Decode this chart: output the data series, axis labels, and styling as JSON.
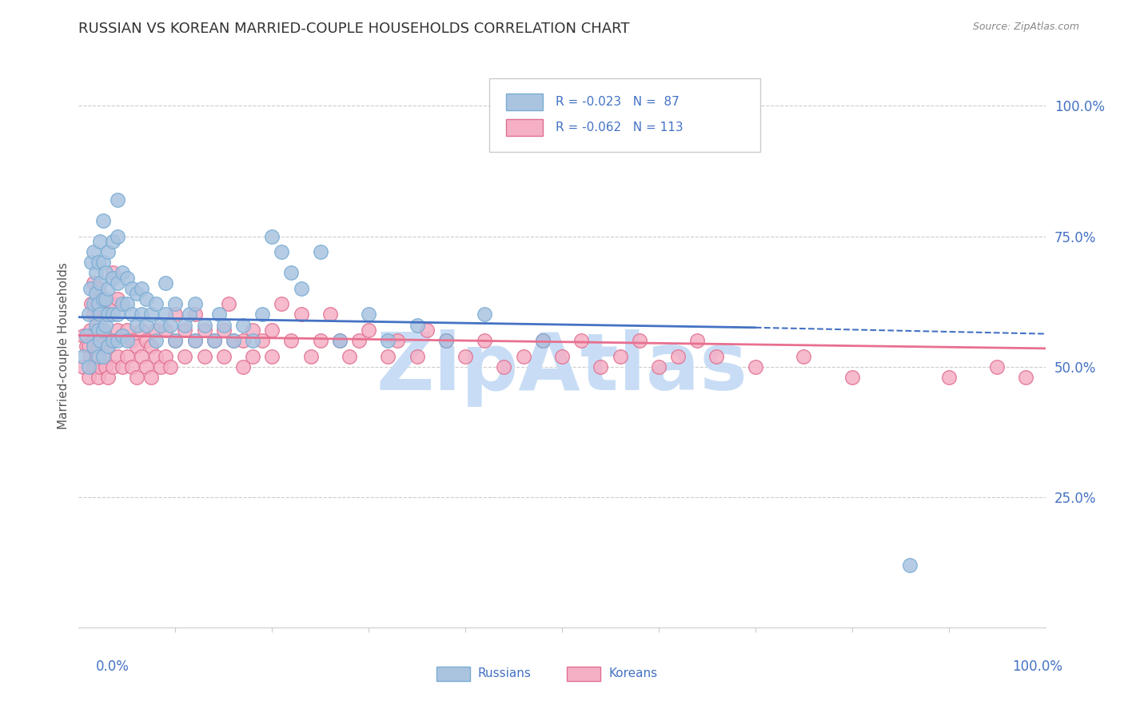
{
  "title": "RUSSIAN VS KOREAN MARRIED-COUPLE HOUSEHOLDS CORRELATION CHART",
  "source": "Source: ZipAtlas.com",
  "ylabel": "Married-couple Households",
  "russian_color": "#aac4e0",
  "russian_edge": "#7aadd4",
  "korean_color": "#f5b0c5",
  "korean_edge": "#e07090",
  "russian_line_color": "#4472c4",
  "korean_line_color": "#e87090",
  "watermark": "ZipAtlas",
  "watermark_color": "#c8ddf5",
  "background_color": "#ffffff",
  "russian_data": [
    [
      0.005,
      0.52
    ],
    [
      0.008,
      0.56
    ],
    [
      0.01,
      0.5
    ],
    [
      0.01,
      0.6
    ],
    [
      0.012,
      0.65
    ],
    [
      0.013,
      0.7
    ],
    [
      0.015,
      0.54
    ],
    [
      0.015,
      0.62
    ],
    [
      0.015,
      0.72
    ],
    [
      0.018,
      0.58
    ],
    [
      0.018,
      0.64
    ],
    [
      0.018,
      0.68
    ],
    [
      0.02,
      0.52
    ],
    [
      0.02,
      0.57
    ],
    [
      0.02,
      0.62
    ],
    [
      0.02,
      0.7
    ],
    [
      0.022,
      0.55
    ],
    [
      0.022,
      0.6
    ],
    [
      0.022,
      0.66
    ],
    [
      0.022,
      0.74
    ],
    [
      0.025,
      0.52
    ],
    [
      0.025,
      0.57
    ],
    [
      0.025,
      0.63
    ],
    [
      0.025,
      0.7
    ],
    [
      0.025,
      0.78
    ],
    [
      0.028,
      0.58
    ],
    [
      0.028,
      0.63
    ],
    [
      0.028,
      0.68
    ],
    [
      0.03,
      0.54
    ],
    [
      0.03,
      0.6
    ],
    [
      0.03,
      0.65
    ],
    [
      0.03,
      0.72
    ],
    [
      0.035,
      0.55
    ],
    [
      0.035,
      0.6
    ],
    [
      0.035,
      0.67
    ],
    [
      0.035,
      0.74
    ],
    [
      0.04,
      0.55
    ],
    [
      0.04,
      0.6
    ],
    [
      0.04,
      0.66
    ],
    [
      0.04,
      0.75
    ],
    [
      0.04,
      0.82
    ],
    [
      0.045,
      0.56
    ],
    [
      0.045,
      0.62
    ],
    [
      0.045,
      0.68
    ],
    [
      0.05,
      0.55
    ],
    [
      0.05,
      0.62
    ],
    [
      0.05,
      0.67
    ],
    [
      0.055,
      0.6
    ],
    [
      0.055,
      0.65
    ],
    [
      0.06,
      0.58
    ],
    [
      0.06,
      0.64
    ],
    [
      0.065,
      0.6
    ],
    [
      0.065,
      0.65
    ],
    [
      0.07,
      0.58
    ],
    [
      0.07,
      0.63
    ],
    [
      0.075,
      0.6
    ],
    [
      0.08,
      0.55
    ],
    [
      0.08,
      0.62
    ],
    [
      0.085,
      0.58
    ],
    [
      0.09,
      0.6
    ],
    [
      0.09,
      0.66
    ],
    [
      0.095,
      0.58
    ],
    [
      0.1,
      0.55
    ],
    [
      0.1,
      0.62
    ],
    [
      0.11,
      0.58
    ],
    [
      0.115,
      0.6
    ],
    [
      0.12,
      0.55
    ],
    [
      0.12,
      0.62
    ],
    [
      0.13,
      0.58
    ],
    [
      0.14,
      0.55
    ],
    [
      0.145,
      0.6
    ],
    [
      0.15,
      0.58
    ],
    [
      0.16,
      0.55
    ],
    [
      0.17,
      0.58
    ],
    [
      0.18,
      0.55
    ],
    [
      0.19,
      0.6
    ],
    [
      0.2,
      0.75
    ],
    [
      0.21,
      0.72
    ],
    [
      0.22,
      0.68
    ],
    [
      0.23,
      0.65
    ],
    [
      0.25,
      0.72
    ],
    [
      0.27,
      0.55
    ],
    [
      0.3,
      0.6
    ],
    [
      0.32,
      0.55
    ],
    [
      0.35,
      0.58
    ],
    [
      0.38,
      0.55
    ],
    [
      0.42,
      0.6
    ],
    [
      0.48,
      0.55
    ],
    [
      0.86,
      0.12
    ]
  ],
  "korean_data": [
    [
      0.005,
      0.5
    ],
    [
      0.005,
      0.56
    ],
    [
      0.008,
      0.54
    ],
    [
      0.01,
      0.48
    ],
    [
      0.01,
      0.54
    ],
    [
      0.012,
      0.52
    ],
    [
      0.012,
      0.57
    ],
    [
      0.013,
      0.62
    ],
    [
      0.015,
      0.5
    ],
    [
      0.015,
      0.55
    ],
    [
      0.015,
      0.6
    ],
    [
      0.015,
      0.66
    ],
    [
      0.018,
      0.52
    ],
    [
      0.018,
      0.57
    ],
    [
      0.018,
      0.62
    ],
    [
      0.018,
      0.5
    ],
    [
      0.02,
      0.48
    ],
    [
      0.02,
      0.54
    ],
    [
      0.02,
      0.6
    ],
    [
      0.02,
      0.65
    ],
    [
      0.022,
      0.5
    ],
    [
      0.022,
      0.55
    ],
    [
      0.022,
      0.6
    ],
    [
      0.025,
      0.52
    ],
    [
      0.025,
      0.57
    ],
    [
      0.025,
      0.62
    ],
    [
      0.028,
      0.5
    ],
    [
      0.028,
      0.55
    ],
    [
      0.028,
      0.6
    ],
    [
      0.03,
      0.48
    ],
    [
      0.03,
      0.54
    ],
    [
      0.03,
      0.6
    ],
    [
      0.035,
      0.5
    ],
    [
      0.035,
      0.55
    ],
    [
      0.035,
      0.62
    ],
    [
      0.035,
      0.68
    ],
    [
      0.04,
      0.52
    ],
    [
      0.04,
      0.57
    ],
    [
      0.04,
      0.63
    ],
    [
      0.045,
      0.5
    ],
    [
      0.045,
      0.56
    ],
    [
      0.05,
      0.52
    ],
    [
      0.05,
      0.57
    ],
    [
      0.055,
      0.5
    ],
    [
      0.055,
      0.55
    ],
    [
      0.06,
      0.48
    ],
    [
      0.06,
      0.54
    ],
    [
      0.065,
      0.52
    ],
    [
      0.065,
      0.57
    ],
    [
      0.07,
      0.5
    ],
    [
      0.07,
      0.55
    ],
    [
      0.075,
      0.48
    ],
    [
      0.075,
      0.54
    ],
    [
      0.08,
      0.52
    ],
    [
      0.08,
      0.57
    ],
    [
      0.085,
      0.5
    ],
    [
      0.09,
      0.52
    ],
    [
      0.09,
      0.57
    ],
    [
      0.095,
      0.5
    ],
    [
      0.1,
      0.55
    ],
    [
      0.1,
      0.6
    ],
    [
      0.11,
      0.52
    ],
    [
      0.11,
      0.57
    ],
    [
      0.12,
      0.55
    ],
    [
      0.12,
      0.6
    ],
    [
      0.13,
      0.52
    ],
    [
      0.13,
      0.57
    ],
    [
      0.14,
      0.55
    ],
    [
      0.15,
      0.52
    ],
    [
      0.15,
      0.57
    ],
    [
      0.155,
      0.62
    ],
    [
      0.16,
      0.55
    ],
    [
      0.17,
      0.5
    ],
    [
      0.17,
      0.55
    ],
    [
      0.18,
      0.52
    ],
    [
      0.18,
      0.57
    ],
    [
      0.19,
      0.55
    ],
    [
      0.2,
      0.52
    ],
    [
      0.2,
      0.57
    ],
    [
      0.21,
      0.62
    ],
    [
      0.22,
      0.55
    ],
    [
      0.23,
      0.6
    ],
    [
      0.24,
      0.52
    ],
    [
      0.25,
      0.55
    ],
    [
      0.26,
      0.6
    ],
    [
      0.27,
      0.55
    ],
    [
      0.28,
      0.52
    ],
    [
      0.29,
      0.55
    ],
    [
      0.3,
      0.57
    ],
    [
      0.32,
      0.52
    ],
    [
      0.33,
      0.55
    ],
    [
      0.35,
      0.52
    ],
    [
      0.36,
      0.57
    ],
    [
      0.38,
      0.55
    ],
    [
      0.4,
      0.52
    ],
    [
      0.42,
      0.55
    ],
    [
      0.44,
      0.5
    ],
    [
      0.46,
      0.52
    ],
    [
      0.48,
      0.55
    ],
    [
      0.5,
      0.52
    ],
    [
      0.52,
      0.55
    ],
    [
      0.54,
      0.5
    ],
    [
      0.56,
      0.52
    ],
    [
      0.58,
      0.55
    ],
    [
      0.6,
      0.5
    ],
    [
      0.62,
      0.52
    ],
    [
      0.64,
      0.55
    ],
    [
      0.66,
      0.52
    ],
    [
      0.7,
      0.5
    ],
    [
      0.75,
      0.52
    ],
    [
      0.8,
      0.48
    ],
    [
      0.9,
      0.48
    ],
    [
      0.95,
      0.5
    ],
    [
      0.98,
      0.48
    ]
  ]
}
